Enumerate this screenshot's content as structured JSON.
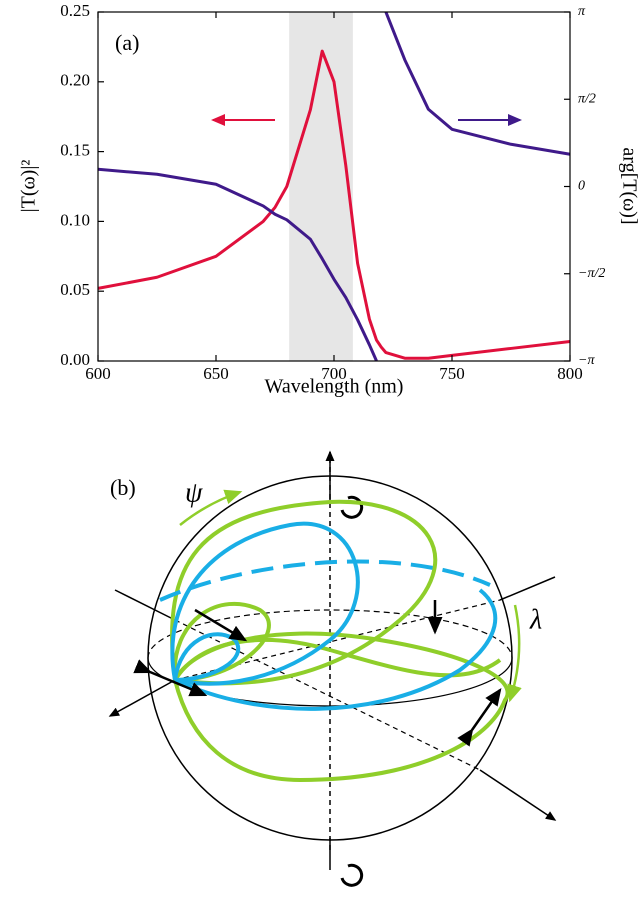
{
  "chart_data": {
    "type": "line",
    "annotation": "(a)",
    "xlabel": "Wavelength (nm)",
    "ylabel": "|T(ω)|²",
    "y2label": "arg[T(ω)]",
    "x": [
      600,
      625,
      650,
      670,
      675,
      680,
      690,
      695,
      700,
      705,
      710,
      715,
      718,
      720,
      722,
      730,
      740,
      750,
      775,
      800
    ],
    "series": [
      {
        "name": "|T(ω)|²",
        "color": "#e0103c",
        "values": [
          0.052,
          0.06,
          0.075,
          0.1,
          0.11,
          0.125,
          0.18,
          0.222,
          0.2,
          0.14,
          0.07,
          0.03,
          0.015,
          0.01,
          0.006,
          0.002,
          0.002,
          0.004,
          0.009,
          0.014
        ]
      },
      {
        "name": "arg[T(ω)]",
        "color": "#3f1a8a",
        "axis": "y2",
        "values": [
          0.31,
          0.22,
          0.04,
          -0.35,
          -0.5,
          -0.6,
          -0.95,
          -1.3,
          -1.67,
          -2.0,
          -2.4,
          -2.85,
          -3.14,
          null,
          3.14,
          2.28,
          1.39,
          1.03,
          0.76,
          0.58
        ]
      }
    ],
    "xlim": [
      600,
      800
    ],
    "xticks": [
      600,
      650,
      700,
      750,
      800
    ],
    "ylim": [
      0,
      0.25
    ],
    "yticks": [
      {
        "value": 0,
        "label": "0.00"
      },
      {
        "value": 0.05,
        "label": "0.05"
      },
      {
        "value": 0.1,
        "label": "0.10"
      },
      0.15,
      {
        "value": 0.2,
        "label": "0.20"
      },
      0.25
    ],
    "y2lim": [
      -3.14159,
      3.14159
    ],
    "y2ticks": [
      {
        "value": -3.14159,
        "label": "−π"
      },
      {
        "value": -1.5708,
        "label": "−π/2"
      },
      {
        "value": 0,
        "label": "0"
      },
      {
        "value": 1.5708,
        "label": "π/2"
      },
      {
        "value": 3.14159,
        "label": "π"
      }
    ],
    "shaded_region": [
      681,
      708
    ],
    "shade_color": "#e6e6e6"
  },
  "diagram": {
    "label": "(b)",
    "psi": "ψ",
    "lambda": "λ"
  }
}
